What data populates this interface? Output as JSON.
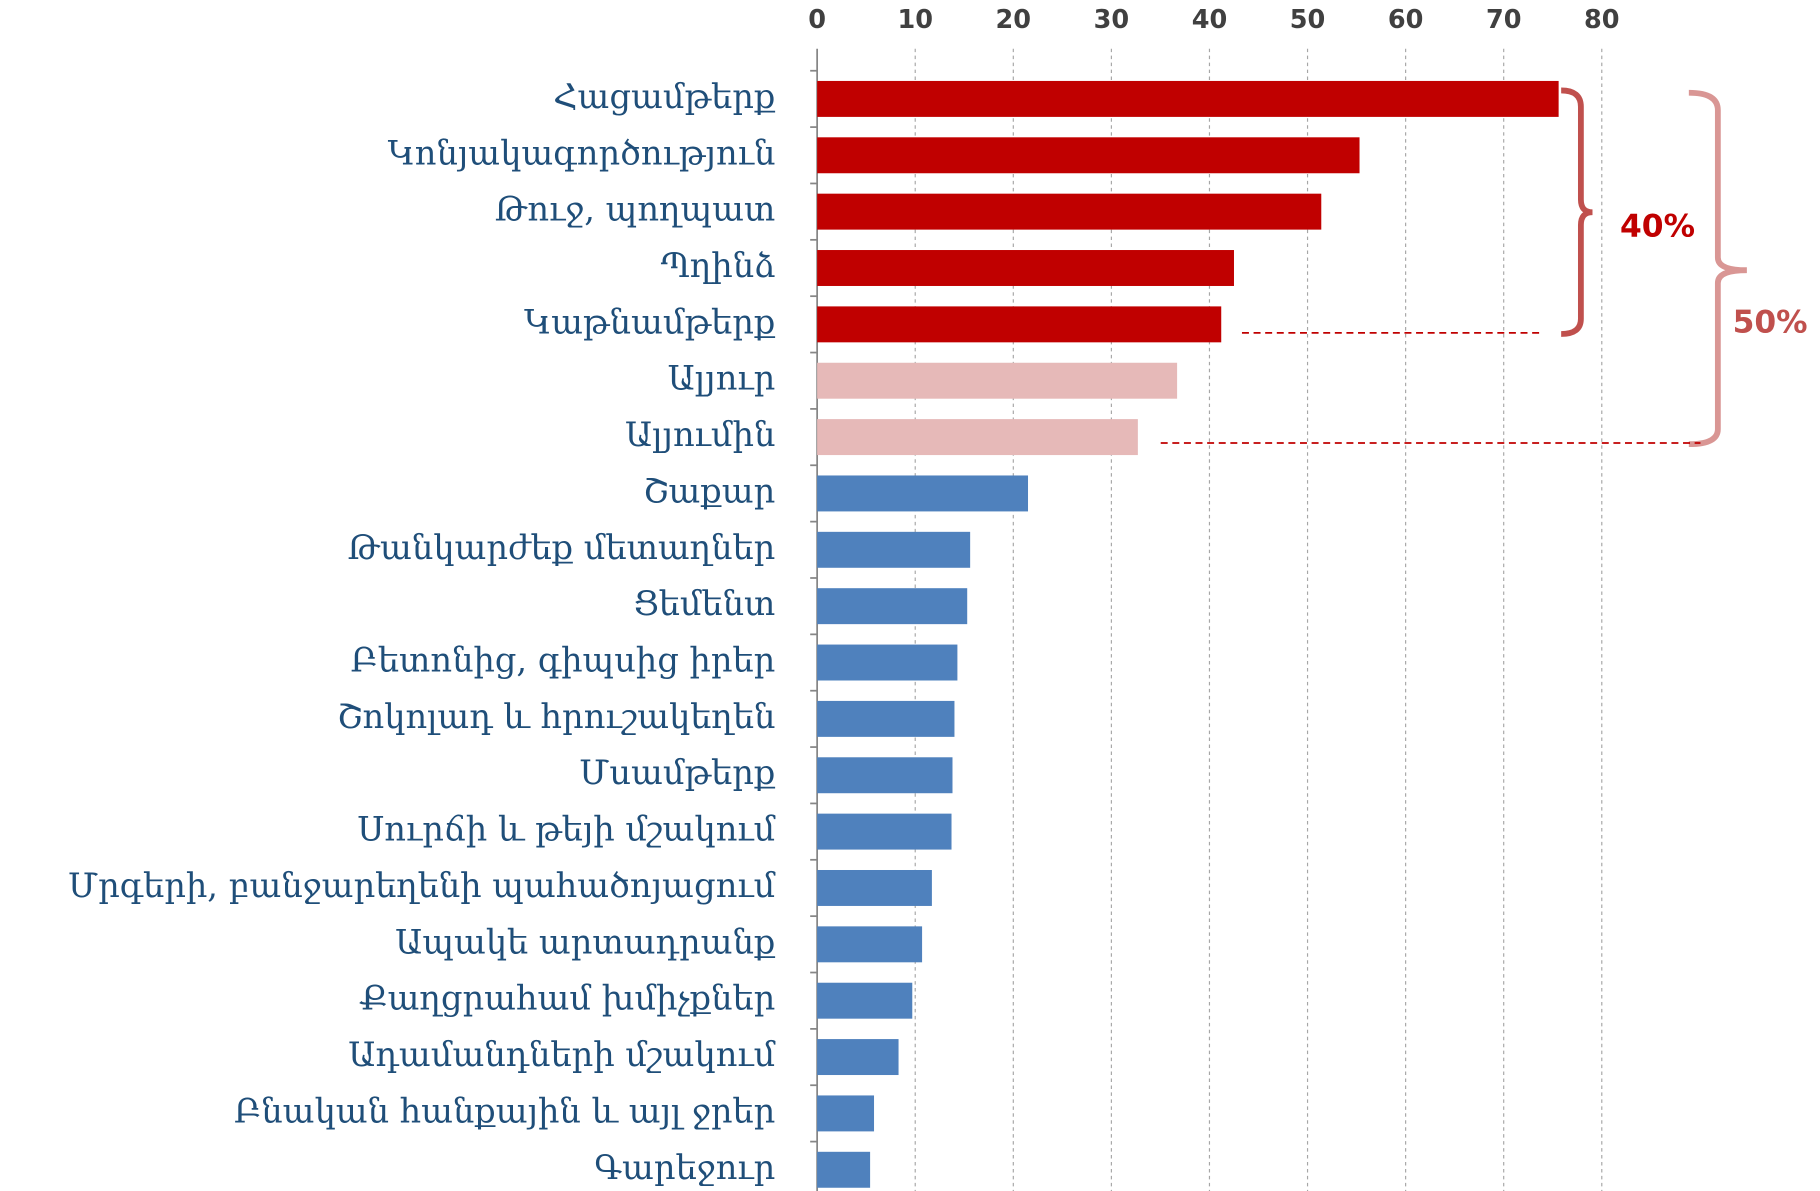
{
  "chart_data": {
    "type": "bar",
    "orientation": "horizontal",
    "categories": [
      "Հացամթերք",
      "Կոնյակագործություն",
      "Թուջ, պողպատ",
      "Պղինձ",
      "Կաթնամթերք",
      "Ալյուր",
      "Ալյումին",
      "Շաքար",
      "Թանկարժեք մետաղներ",
      "Ցեմենտ",
      "Բետոնից, գիպսից իրեր",
      "Շոկոլադ և հրուշակեղեն",
      "Մսամթերք",
      "Սուրճի և թեյի մշակում",
      "Մրգերի, բանջարեղենի պահածոյացում",
      "Ապակե արտադրանք",
      "Քաղցրահամ խմիչքներ",
      "Ադամանդների մշակում",
      "Բնական հանքային և այլ ջրեր",
      "Գարեջուր"
    ],
    "values": [
      75.6,
      55.3,
      51.4,
      42.5,
      41.2,
      36.7,
      32.7,
      21.5,
      15.6,
      15.3,
      14.3,
      14.0,
      13.8,
      13.7,
      11.7,
      10.7,
      9.7,
      8.3,
      5.8,
      5.4
    ],
    "colors": [
      "#c00000",
      "#c00000",
      "#c00000",
      "#c00000",
      "#c00000",
      "#e6b9b8",
      "#e6b9b8",
      "#4f81bd",
      "#4f81bd",
      "#4f81bd",
      "#4f81bd",
      "#4f81bd",
      "#4f81bd",
      "#4f81bd",
      "#4f81bd",
      "#4f81bd",
      "#4f81bd",
      "#4f81bd",
      "#4f81bd",
      "#4f81bd"
    ],
    "xlim": [
      0,
      80
    ],
    "xticks": [
      0,
      10,
      20,
      30,
      40,
      50,
      60,
      70,
      80
    ],
    "grid": true,
    "annotations": [
      "40%",
      "50%"
    ]
  }
}
